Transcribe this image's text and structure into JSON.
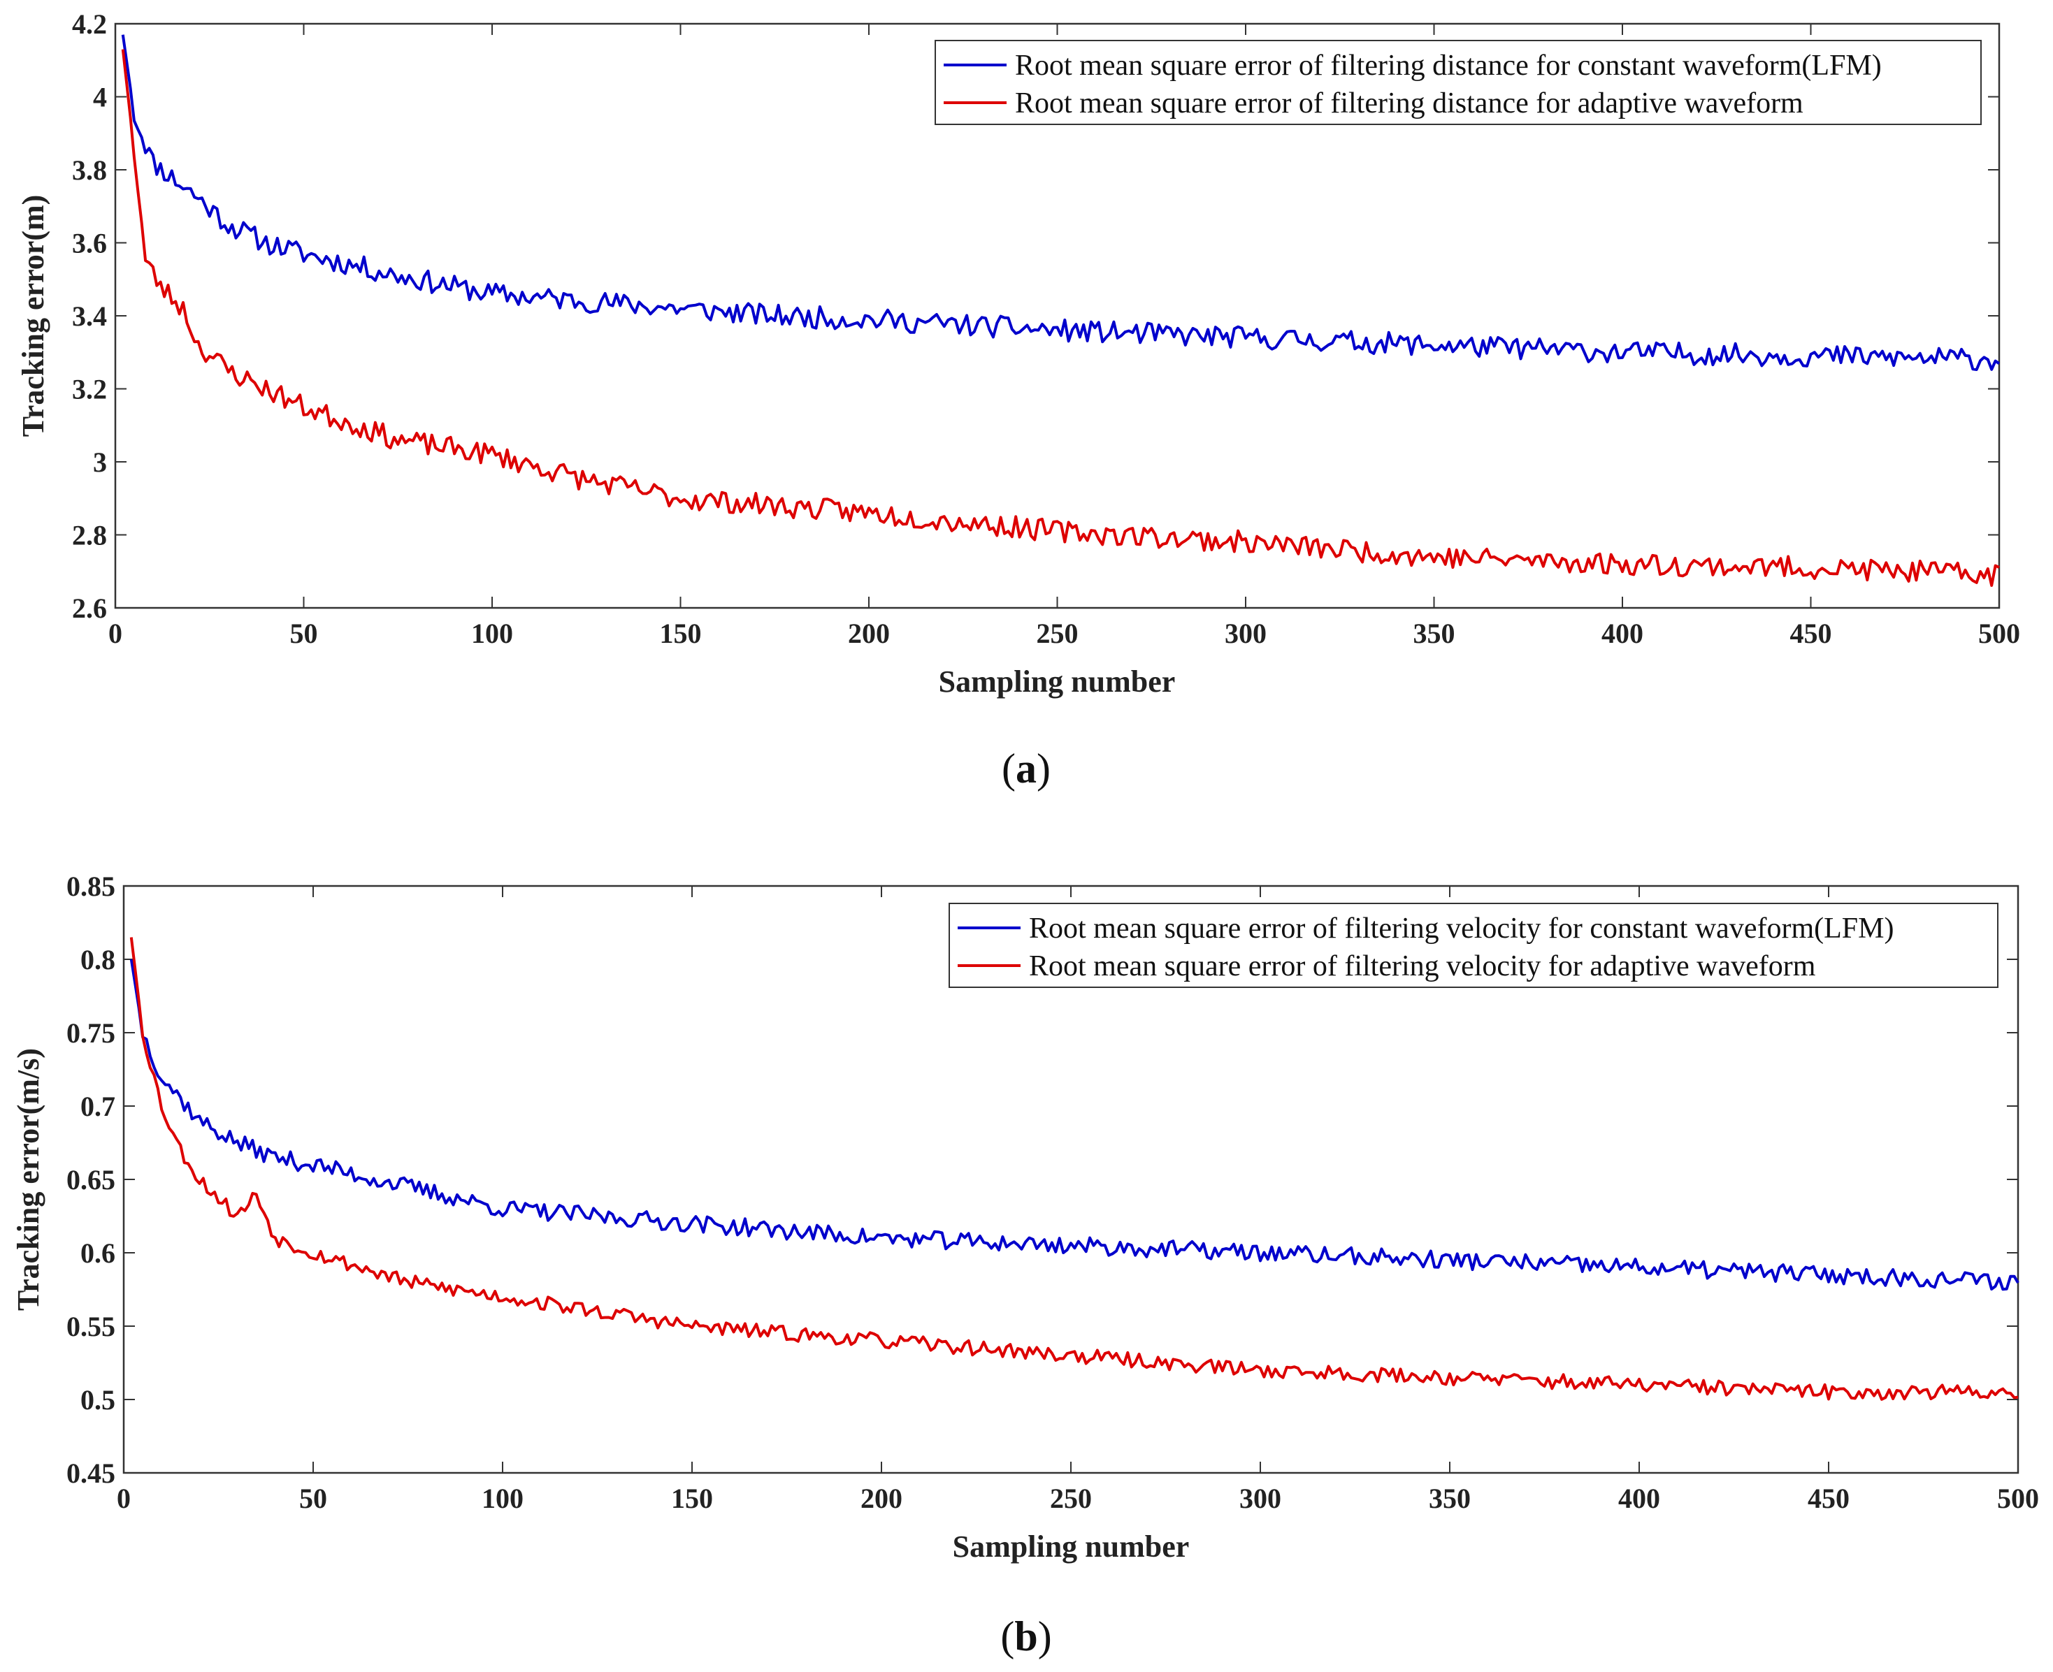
{
  "chart_data": [
    {
      "id": "a",
      "type": "line",
      "caption_open": "(",
      "caption_letter": "a",
      "caption_close": ")",
      "xlabel": "Sampling number",
      "ylabel": "Tracking error(m)",
      "xlim": [
        0,
        500
      ],
      "ylim": [
        2.6,
        4.2
      ],
      "xticks": [
        0,
        50,
        100,
        150,
        200,
        250,
        300,
        350,
        400,
        450,
        500
      ],
      "xtick_labels": [
        "0",
        "50",
        "100",
        "150",
        "200",
        "250",
        "300",
        "350",
        "400",
        "450",
        "500"
      ],
      "yticks": [
        2.6,
        2.8,
        3.0,
        3.2,
        3.4,
        3.6,
        3.8,
        4.0,
        4.2
      ],
      "ytick_labels": [
        "2.6",
        "2.8",
        "3",
        "3.2",
        "3.4",
        "3.6",
        "3.8",
        "4",
        "4.2"
      ],
      "legend_position": "top-right",
      "series": [
        {
          "name": "Root mean square error of filtering distance for constant waveform(LFM)",
          "color": "#0000cc",
          "noise": 0.03,
          "seed": 11,
          "anchors": [
            [
              2,
              4.17
            ],
            [
              5,
              3.95
            ],
            [
              10,
              3.82
            ],
            [
              20,
              3.74
            ],
            [
              30,
              3.65
            ],
            [
              40,
              3.6
            ],
            [
              50,
              3.57
            ],
            [
              75,
              3.51
            ],
            [
              100,
              3.46
            ],
            [
              125,
              3.44
            ],
            [
              150,
              3.42
            ],
            [
              175,
              3.4
            ],
            [
              200,
              3.39
            ],
            [
              250,
              3.36
            ],
            [
              300,
              3.34
            ],
            [
              350,
              3.32
            ],
            [
              400,
              3.3
            ],
            [
              450,
              3.29
            ],
            [
              500,
              3.28
            ]
          ]
        },
        {
          "name": "Root mean square error of filtering distance for adaptive waveform",
          "color": "#dd0000",
          "noise": 0.03,
          "seed": 23,
          "anchors": [
            [
              2,
              4.13
            ],
            [
              5,
              3.85
            ],
            [
              8,
              3.55
            ],
            [
              12,
              3.48
            ],
            [
              18,
              3.42
            ],
            [
              22,
              3.32
            ],
            [
              30,
              3.25
            ],
            [
              40,
              3.2
            ],
            [
              50,
              3.15
            ],
            [
              75,
              3.06
            ],
            [
              100,
              3.02
            ],
            [
              125,
              2.95
            ],
            [
              150,
              2.9
            ],
            [
              175,
              2.88
            ],
            [
              200,
              2.86
            ],
            [
              250,
              2.81
            ],
            [
              300,
              2.78
            ],
            [
              350,
              2.74
            ],
            [
              400,
              2.72
            ],
            [
              450,
              2.71
            ],
            [
              500,
              2.69
            ]
          ]
        }
      ]
    },
    {
      "id": "b",
      "type": "line",
      "caption_open": "(",
      "caption_letter": "b",
      "caption_close": ")",
      "xlabel": "Sampling number",
      "ylabel": "Tracking error(m/s)",
      "xlim": [
        0,
        500
      ],
      "ylim": [
        0.45,
        0.85
      ],
      "xticks": [
        0,
        50,
        100,
        150,
        200,
        250,
        300,
        350,
        400,
        450,
        500
      ],
      "xtick_labels": [
        "0",
        "50",
        "100",
        "150",
        "200",
        "250",
        "300",
        "350",
        "400",
        "450",
        "500"
      ],
      "yticks": [
        0.45,
        0.5,
        0.55,
        0.6,
        0.65,
        0.7,
        0.75,
        0.8,
        0.85
      ],
      "ytick_labels": [
        "0.45",
        "0.5",
        "0.55",
        "0.6",
        "0.65",
        "0.7",
        "0.75",
        "0.8",
        "0.85"
      ],
      "legend_position": "top-right",
      "series": [
        {
          "name": "Root mean square error of filtering velocity for constant waveform(LFM)",
          "color": "#0000cc",
          "noise": 0.006,
          "seed": 37,
          "anchors": [
            [
              2,
              0.8
            ],
            [
              5,
              0.75
            ],
            [
              10,
              0.72
            ],
            [
              20,
              0.69
            ],
            [
              30,
              0.675
            ],
            [
              40,
              0.665
            ],
            [
              50,
              0.66
            ],
            [
              75,
              0.645
            ],
            [
              100,
              0.63
            ],
            [
              125,
              0.625
            ],
            [
              150,
              0.62
            ],
            [
              175,
              0.615
            ],
            [
              200,
              0.61
            ],
            [
              250,
              0.605
            ],
            [
              300,
              0.6
            ],
            [
              350,
              0.595
            ],
            [
              400,
              0.59
            ],
            [
              450,
              0.585
            ],
            [
              500,
              0.58
            ]
          ]
        },
        {
          "name": "Root mean square error of filtering velocity for adaptive waveform",
          "color": "#dd0000",
          "noise": 0.005,
          "seed": 53,
          "anchors": [
            [
              2,
              0.815
            ],
            [
              5,
              0.75
            ],
            [
              10,
              0.7
            ],
            [
              15,
              0.67
            ],
            [
              20,
              0.65
            ],
            [
              30,
              0.625
            ],
            [
              35,
              0.64
            ],
            [
              40,
              0.61
            ],
            [
              50,
              0.6
            ],
            [
              75,
              0.58
            ],
            [
              100,
              0.57
            ],
            [
              125,
              0.56
            ],
            [
              150,
              0.55
            ],
            [
              175,
              0.545
            ],
            [
              200,
              0.54
            ],
            [
              250,
              0.53
            ],
            [
              300,
              0.52
            ],
            [
              350,
              0.515
            ],
            [
              400,
              0.51
            ],
            [
              450,
              0.505
            ],
            [
              500,
              0.505
            ]
          ]
        }
      ]
    }
  ]
}
